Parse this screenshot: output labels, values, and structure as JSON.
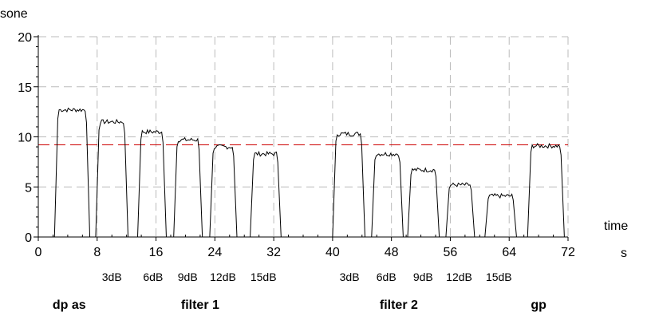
{
  "chart_data": {
    "type": "line",
    "title": "",
    "ylabel": "sone",
    "xlabel": "time",
    "x_unit": "s",
    "xlim": [
      0,
      72
    ],
    "ylim": [
      0,
      20
    ],
    "x_ticks": [
      0,
      8,
      16,
      24,
      32,
      40,
      48,
      56,
      64,
      72
    ],
    "y_ticks": [
      0,
      5,
      10,
      15,
      20
    ],
    "grid": true,
    "reference_line": {
      "y": 9.2,
      "color": "#cc0000",
      "style": "dashed"
    },
    "colors": {
      "series": "#000000",
      "grid": "#bbbbbb",
      "reference": "#cc0000"
    },
    "series": [
      {
        "segments": [
          {
            "start": 2.2,
            "end": 7.0,
            "level": 12.7
          },
          {
            "start": 7.8,
            "end": 12.2,
            "level": 11.5
          },
          {
            "start": 13.5,
            "end": 17.4,
            "level": 10.5
          },
          {
            "start": 18.4,
            "end": 22.3,
            "level": 9.7
          },
          {
            "start": 23.3,
            "end": 27.0,
            "level": 9.0
          },
          {
            "start": 28.8,
            "end": 33.0,
            "level": 8.3
          },
          {
            "start": 40.0,
            "end": 44.4,
            "level": 10.3
          },
          {
            "start": 45.3,
            "end": 49.6,
            "level": 8.3
          },
          {
            "start": 50.2,
            "end": 54.5,
            "level": 6.7
          },
          {
            "start": 55.4,
            "end": 59.3,
            "level": 5.2
          },
          {
            "start": 60.7,
            "end": 65.0,
            "level": 4.1
          },
          {
            "start": 66.5,
            "end": 71.5,
            "level": 9.1
          }
        ]
      }
    ],
    "annotations": [
      {
        "text": "3dB",
        "x": 10
      },
      {
        "text": "6dB",
        "x": 15.6
      },
      {
        "text": "9dB",
        "x": 20.3
      },
      {
        "text": "12dB",
        "x": 25.1
      },
      {
        "text": "15dB",
        "x": 30.6
      },
      {
        "text": "3dB",
        "x": 42.3
      },
      {
        "text": "6dB",
        "x": 47.3
      },
      {
        "text": "9dB",
        "x": 52.3
      },
      {
        "text": "12dB",
        "x": 57.2
      },
      {
        "text": "15dB",
        "x": 62.6
      }
    ],
    "groups": [
      {
        "text": "dp as",
        "x": 4.2
      },
      {
        "text": "filter 1",
        "x": 22
      },
      {
        "text": "filter 2",
        "x": 49
      },
      {
        "text": "gp",
        "x": 68
      }
    ]
  }
}
